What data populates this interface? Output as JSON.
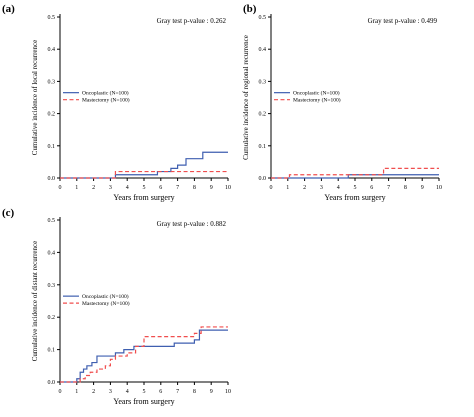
{
  "colors": {
    "oncoplastic": "#3f5fb0",
    "mastectomy": "#f04e4e",
    "axis": "#000000"
  },
  "chart_data": [
    {
      "panel_label": "(a)",
      "type": "line",
      "step": true,
      "title": "",
      "annotation": "Gray test p-value : 0.262",
      "xlabel": "Years from surgery",
      "ylabel": "Cumulative incidence of local recurrence",
      "xlim": [
        0,
        10
      ],
      "ylim": [
        0,
        0.5
      ],
      "x_ticks": [
        "0",
        "1",
        "2",
        "3",
        "4",
        "5",
        "6",
        "7",
        "8",
        "9",
        "10"
      ],
      "y_ticks": [
        "0.0",
        "0.1",
        "0.2",
        "0.3",
        "0.4",
        "0.5"
      ],
      "legend_position": "left-middle",
      "series": [
        {
          "name": "Oncoplastic (N=100)",
          "style": "solid",
          "color": "#3f5fb0",
          "x": [
            0,
            3.3,
            5.8,
            6.6,
            7.0,
            7.5,
            8.5,
            10.0
          ],
          "y": [
            0,
            0.01,
            0.02,
            0.03,
            0.04,
            0.06,
            0.08,
            0.08
          ]
        },
        {
          "name": "Mastectomy (N=100)",
          "style": "dashed",
          "color": "#f04e4e",
          "x": [
            0,
            3.3,
            10.0
          ],
          "y": [
            0,
            0.02,
            0.02
          ]
        }
      ]
    },
    {
      "panel_label": "(b)",
      "type": "line",
      "step": true,
      "title": "",
      "annotation": "Gray test p-value : 0.499",
      "xlabel": "Years from surgery",
      "ylabel": "Cumulative incidence of regional recurrence",
      "xlim": [
        0,
        10
      ],
      "ylim": [
        0,
        0.5
      ],
      "x_ticks": [
        "0",
        "1",
        "2",
        "3",
        "4",
        "5",
        "6",
        "7",
        "8",
        "9",
        "10"
      ],
      "y_ticks": [
        "0.0",
        "0.1",
        "0.2",
        "0.3",
        "0.4",
        "0.5"
      ],
      "legend_position": "left-middle",
      "series": [
        {
          "name": "Oncoplastic (N=100)",
          "style": "solid",
          "color": "#3f5fb0",
          "x": [
            0,
            4.6,
            10.0
          ],
          "y": [
            0,
            0.01,
            0.01
          ]
        },
        {
          "name": "Mastectomy (N=100)",
          "style": "dashed",
          "color": "#f04e4e",
          "x": [
            0,
            1.1,
            6.7,
            10.0
          ],
          "y": [
            0,
            0.01,
            0.03,
            0.03
          ]
        }
      ]
    },
    {
      "panel_label": "(c)",
      "type": "line",
      "step": true,
      "title": "",
      "annotation": "Gray test p-value : 0.882",
      "xlabel": "Years from surgery",
      "ylabel": "Cumulative incidence of distant recurrence",
      "xlim": [
        0,
        10
      ],
      "ylim": [
        0,
        0.5
      ],
      "x_ticks": [
        "0",
        "1",
        "2",
        "3",
        "4",
        "5",
        "6",
        "7",
        "8",
        "9",
        "10"
      ],
      "y_ticks": [
        "0.0",
        "0.1",
        "0.2",
        "0.3",
        "0.4",
        "0.5"
      ],
      "legend_position": "left-middle",
      "series": [
        {
          "name": "Oncoplastic (N=100)",
          "style": "solid",
          "color": "#3f5fb0",
          "x": [
            0,
            1.0,
            1.2,
            1.4,
            1.6,
            1.9,
            2.2,
            3.3,
            3.8,
            4.4,
            6.8,
            8.0,
            8.3,
            10.0
          ],
          "y": [
            0,
            0.01,
            0.03,
            0.04,
            0.05,
            0.06,
            0.08,
            0.09,
            0.1,
            0.11,
            0.12,
            0.13,
            0.16,
            0.16
          ]
        },
        {
          "name": "Mastectomy (N=100)",
          "style": "dashed",
          "color": "#f04e4e",
          "x": [
            0,
            1.2,
            1.5,
            1.8,
            2.2,
            2.7,
            3.0,
            3.3,
            4.0,
            4.5,
            5.0,
            8.0,
            8.4,
            10.0
          ],
          "y": [
            0,
            0.01,
            0.02,
            0.03,
            0.04,
            0.05,
            0.07,
            0.08,
            0.09,
            0.11,
            0.14,
            0.15,
            0.17,
            0.17
          ]
        }
      ]
    }
  ]
}
